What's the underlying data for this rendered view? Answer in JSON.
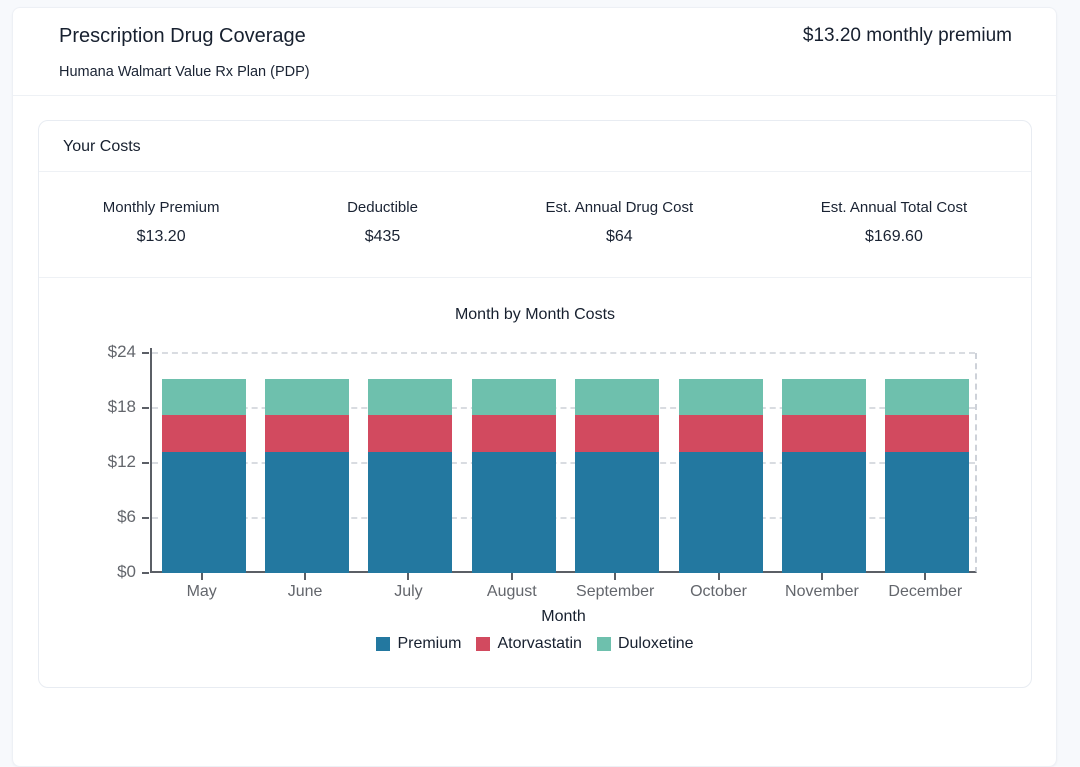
{
  "header": {
    "title": "Prescription Drug Coverage",
    "subtitle": "Humana Walmart Value Rx Plan (PDP)",
    "premium_summary": "$13.20 monthly premium"
  },
  "costs": {
    "title": "Your Costs",
    "stats": [
      {
        "label": "Monthly Premium",
        "value": "$13.20"
      },
      {
        "label": "Deductible",
        "value": "$435"
      },
      {
        "label": "Est. Annual Drug Cost",
        "value": "$64"
      },
      {
        "label": "Est. Annual Total Cost",
        "value": "$169.60"
      }
    ]
  },
  "chart_data": {
    "type": "bar",
    "stacked": true,
    "title": "Month by Month Costs",
    "xlabel": "Month",
    "ylabel": "",
    "categories": [
      "May",
      "June",
      "July",
      "August",
      "September",
      "October",
      "November",
      "December"
    ],
    "series": [
      {
        "name": "Premium",
        "color": "#2378a0",
        "values": [
          13.2,
          13.2,
          13.2,
          13.2,
          13.2,
          13.2,
          13.2,
          13.2
        ]
      },
      {
        "name": "Atorvastatin",
        "color": "#d24a5f",
        "values": [
          4,
          4,
          4,
          4,
          4,
          4,
          4,
          4
        ]
      },
      {
        "name": "Duloxetine",
        "color": "#6ec0ad",
        "values": [
          4,
          4,
          4,
          4,
          4,
          4,
          4,
          4
        ]
      }
    ],
    "ylim": [
      0,
      24
    ],
    "yticks": [
      0,
      6,
      12,
      18,
      24
    ],
    "ytick_prefix": "$",
    "grid": "dashed",
    "legend_position": "bottom",
    "axis_color": "#5b5f66",
    "grid_color": "#d9dce1",
    "tick_label_color": "#63666c"
  }
}
